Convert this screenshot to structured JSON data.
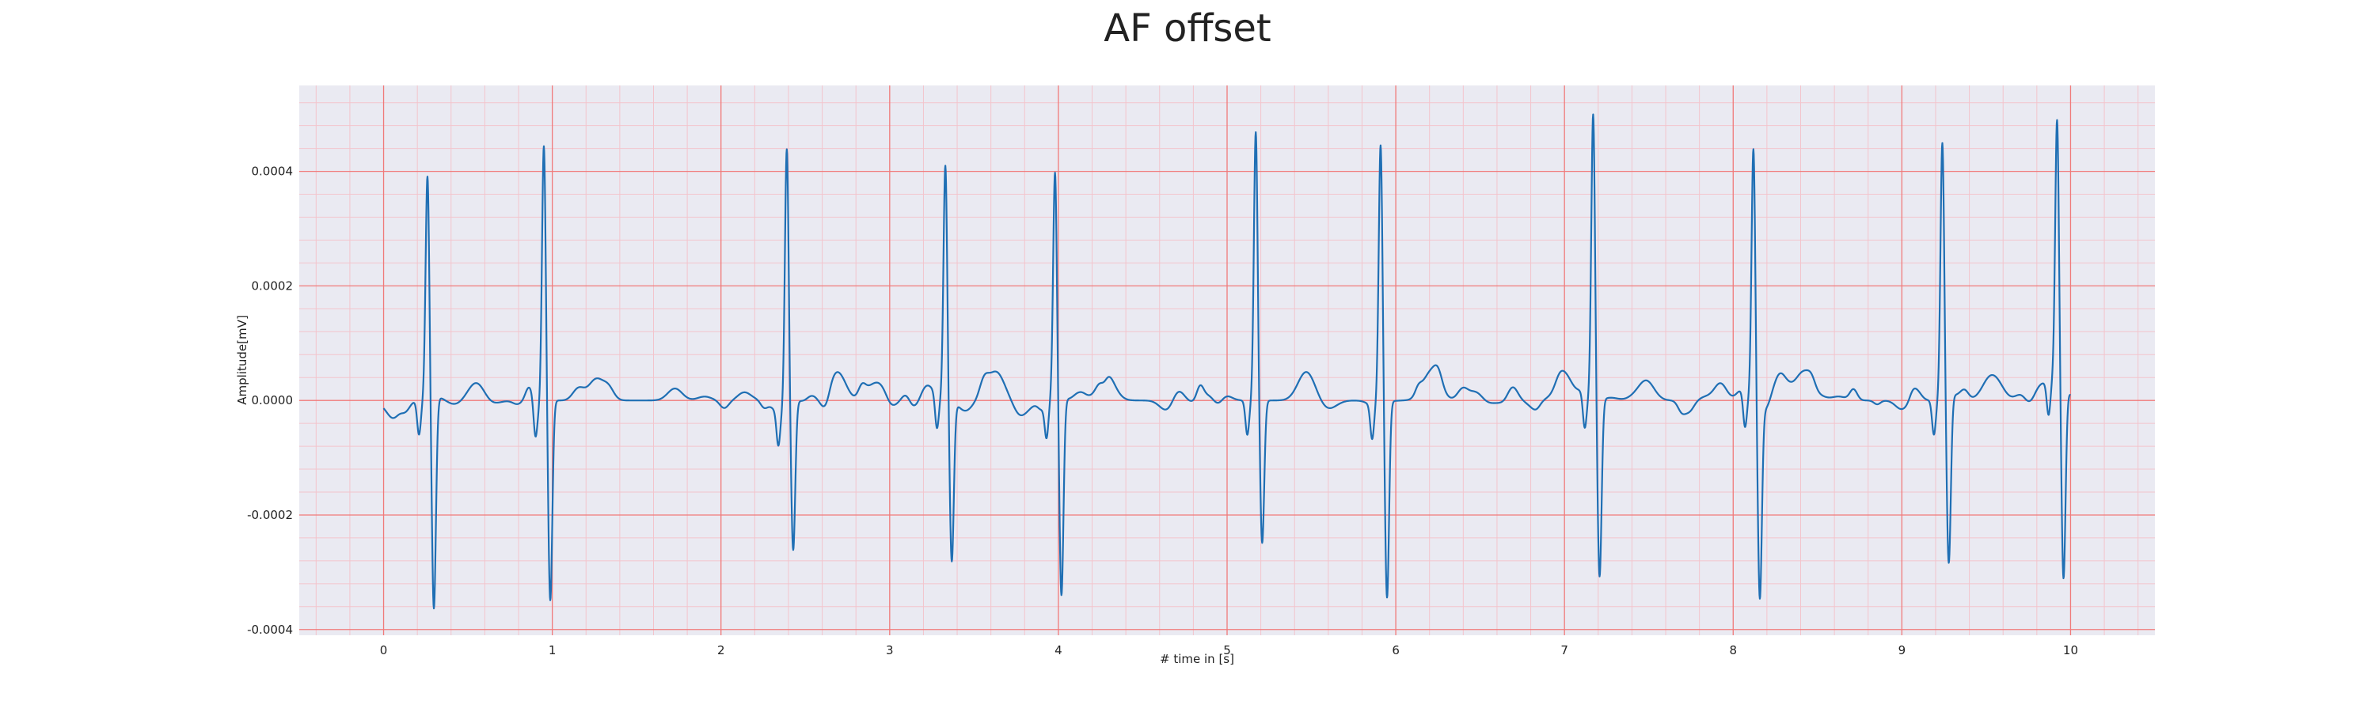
{
  "chart_data": {
    "type": "line",
    "title": "AF offset",
    "xlabel": "# time in [s]",
    "ylabel": "Amplitude[mV]",
    "xlim": [
      -0.5,
      10.5
    ],
    "ylim": [
      -0.00041,
      0.00055
    ],
    "xticks": [
      0,
      1,
      2,
      3,
      4,
      5,
      6,
      7,
      8,
      9,
      10
    ],
    "xtick_labels": [
      "0",
      "1",
      "2",
      "3",
      "4",
      "5",
      "6",
      "7",
      "8",
      "9",
      "10"
    ],
    "yticks": [
      -0.0004,
      -0.0002,
      0.0,
      0.0002,
      0.0004
    ],
    "ytick_labels": [
      "-0.0004",
      "-0.0002",
      "0.0000",
      "0.0002",
      "0.0004"
    ],
    "grid": true,
    "legend": "none",
    "colors": {
      "line": "#1f6fb4",
      "background": "#eaeaf2",
      "grid_major": "#f07a7a",
      "grid_minor": "#f3c4cc"
    },
    "series": [
      {
        "beats": [
          {
            "t": 0.26,
            "peak": 0.00039,
            "trough": -0.00037
          },
          {
            "t": 0.95,
            "peak": 0.00045,
            "trough": -0.00035
          },
          {
            "t": 2.39,
            "peak": 0.00045,
            "trough": -0.00026
          },
          {
            "t": 3.33,
            "peak": 0.00041,
            "trough": -0.00028
          },
          {
            "t": 3.98,
            "peak": 0.00039,
            "trough": -0.00035
          },
          {
            "t": 5.17,
            "peak": 0.00047,
            "trough": -0.00025
          },
          {
            "t": 5.91,
            "peak": 0.00044,
            "trough": -0.00035
          },
          {
            "t": 7.17,
            "peak": 0.0005,
            "trough": -0.00031
          },
          {
            "t": 8.12,
            "peak": 0.00044,
            "trough": -0.00034
          },
          {
            "t": 9.24,
            "peak": 0.00045,
            "trough": -0.00029
          },
          {
            "t": 9.92,
            "peak": 0.00045,
            "trough": -0.00034
          }
        ],
        "t_end": 10.0
      }
    ]
  }
}
